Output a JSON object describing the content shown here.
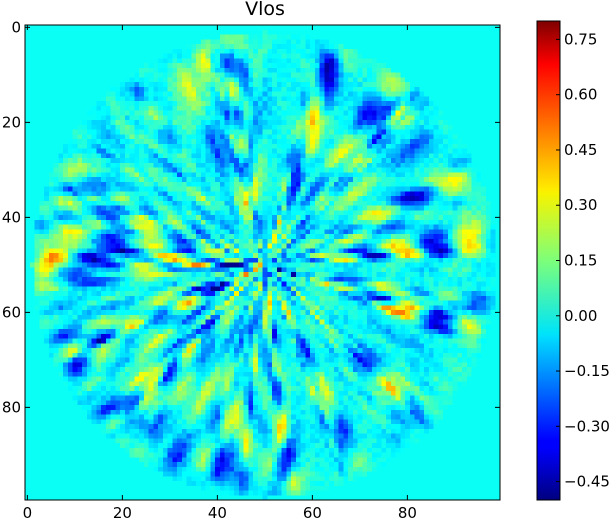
{
  "chart_data": {
    "type": "heatmap",
    "title": "Vlos",
    "xlabel": "",
    "ylabel": "",
    "grid_size": [
      100,
      100
    ],
    "x_ticks": [
      0,
      20,
      40,
      60,
      80
    ],
    "y_ticks": [
      0,
      20,
      40,
      60,
      80
    ],
    "x_tick_labels": [
      "0",
      "20",
      "40",
      "60",
      "80"
    ],
    "y_tick_labels": [
      "0",
      "20",
      "40",
      "60",
      "80"
    ],
    "xlim": [
      -0.5,
      99.5
    ],
    "ylim": [
      99.5,
      -0.5
    ],
    "colormap": "jet",
    "colorbar": {
      "range": [
        -0.5,
        0.8
      ],
      "ticks": [
        0.75,
        0.6,
        0.45,
        0.3,
        0.15,
        0.0,
        -0.15,
        -0.3,
        -0.45
      ],
      "tick_labels": [
        "0.75",
        "0.60",
        "0.45",
        "0.30",
        "0.15",
        "0.00",
        "−0.15",
        "−0.30",
        "−0.45"
      ]
    },
    "background_value": 0.0,
    "disk_center": [
      50,
      50
    ],
    "disk_radius": 49,
    "value_range_in_disk": [
      -0.48,
      0.48
    ],
    "pattern": "radial streaks of positive and negative values inside the disk; zero outside"
  },
  "colors": {
    "axis": "#000000",
    "background": "#ffffff"
  }
}
